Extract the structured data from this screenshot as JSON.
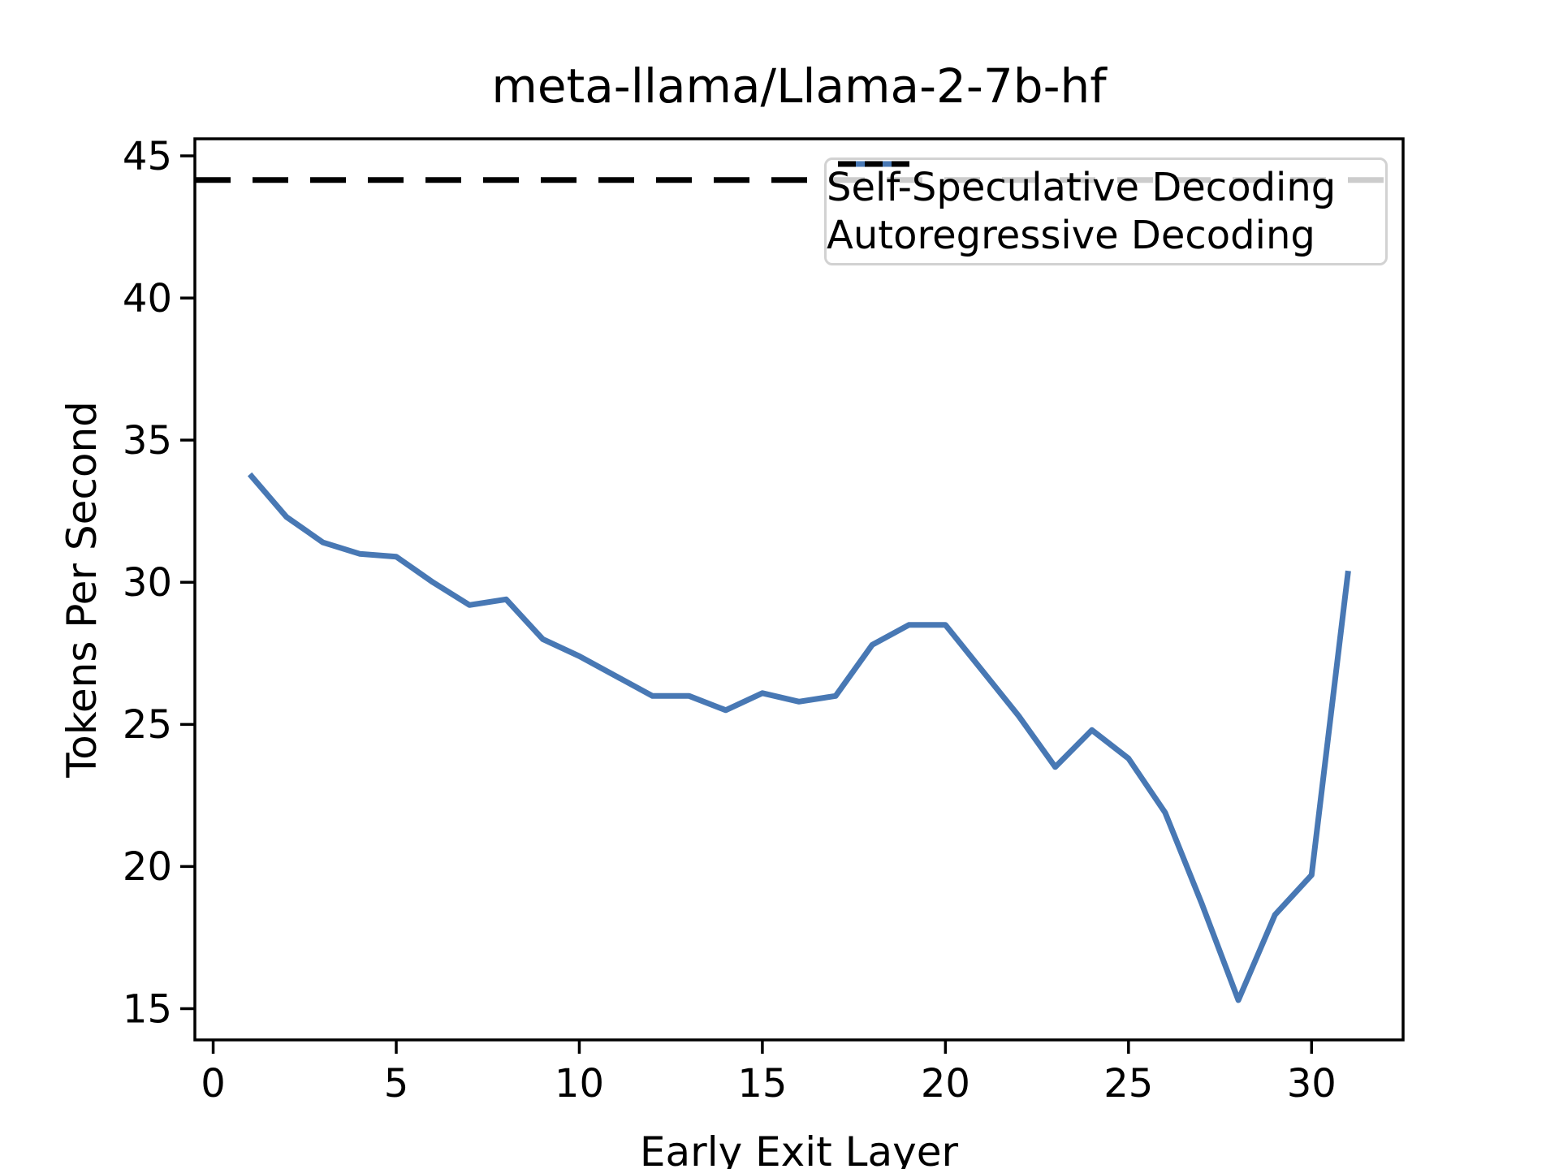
{
  "chart_data": {
    "type": "line",
    "title": "meta-llama/Llama-2-7b-hf",
    "xlabel": "Early Exit Layer",
    "ylabel": "Tokens Per Second",
    "xlim": [
      -0.5,
      32.5
    ],
    "ylim": [
      13.9,
      45.6
    ],
    "xticks": [
      0,
      5,
      10,
      15,
      20,
      25,
      30
    ],
    "yticks": [
      15,
      20,
      25,
      30,
      35,
      40,
      45
    ],
    "grid": false,
    "legend_position": "upper right",
    "x": [
      1,
      2,
      3,
      4,
      5,
      6,
      7,
      8,
      9,
      10,
      11,
      12,
      13,
      14,
      15,
      16,
      17,
      18,
      19,
      20,
      21,
      22,
      23,
      24,
      25,
      26,
      27,
      28,
      29,
      30,
      31
    ],
    "series": [
      {
        "name": "Self-Speculative Decoding",
        "style": "solid",
        "color": "#4878b4",
        "values": [
          33.8,
          32.3,
          31.4,
          31.0,
          30.9,
          30.0,
          29.2,
          29.4,
          28.0,
          27.4,
          26.7,
          26.0,
          26.0,
          25.5,
          26.1,
          25.8,
          26.0,
          27.8,
          28.5,
          28.5,
          26.9,
          25.3,
          23.5,
          24.8,
          23.8,
          21.9,
          18.7,
          15.3,
          18.3,
          19.7,
          30.4
        ]
      },
      {
        "name": "Autoregressive Decoding",
        "style": "dashed",
        "color": "#000000",
        "hline_value": 44.15
      }
    ],
    "axis_color": "#000000",
    "background": "#ffffff"
  }
}
